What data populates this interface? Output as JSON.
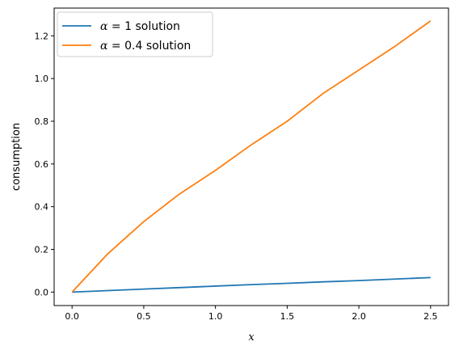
{
  "chart_data": {
    "type": "line",
    "xlabel": "x",
    "ylabel": "consumption",
    "xlim": [
      -0.125,
      2.625
    ],
    "ylim": [
      -0.063,
      1.33
    ],
    "x_ticks": [
      0.0,
      0.5,
      1.0,
      1.5,
      2.0,
      2.5
    ],
    "x_tick_labels": [
      "0.0",
      "0.5",
      "1.0",
      "1.5",
      "2.0",
      "2.5"
    ],
    "y_ticks": [
      0.0,
      0.2,
      0.4,
      0.6,
      0.8,
      1.0,
      1.2
    ],
    "y_tick_labels": [
      "0.0",
      "0.2",
      "0.4",
      "0.6",
      "0.8",
      "1.0",
      "1.2"
    ],
    "grid": false,
    "legend_position": "top-left",
    "x": [
      0.0,
      0.25,
      0.5,
      0.75,
      1.0,
      1.25,
      1.5,
      1.75,
      2.0,
      2.25,
      2.5
    ],
    "series": [
      {
        "name": "α = 1 solution",
        "legend_greek": "α",
        "legend_rest": " = 1 solution",
        "color": "#1f77b4",
        "values": [
          0.0,
          0.007,
          0.014,
          0.021,
          0.028,
          0.035,
          0.041,
          0.048,
          0.054,
          0.061,
          0.068
        ]
      },
      {
        "name": "α = 0.4 solution",
        "legend_greek": "α",
        "legend_rest": " = 0.4 solution",
        "color": "#ff7f0e",
        "values": [
          0.0,
          0.18,
          0.33,
          0.46,
          0.57,
          0.69,
          0.8,
          0.93,
          1.04,
          1.15,
          1.27
        ]
      }
    ]
  }
}
